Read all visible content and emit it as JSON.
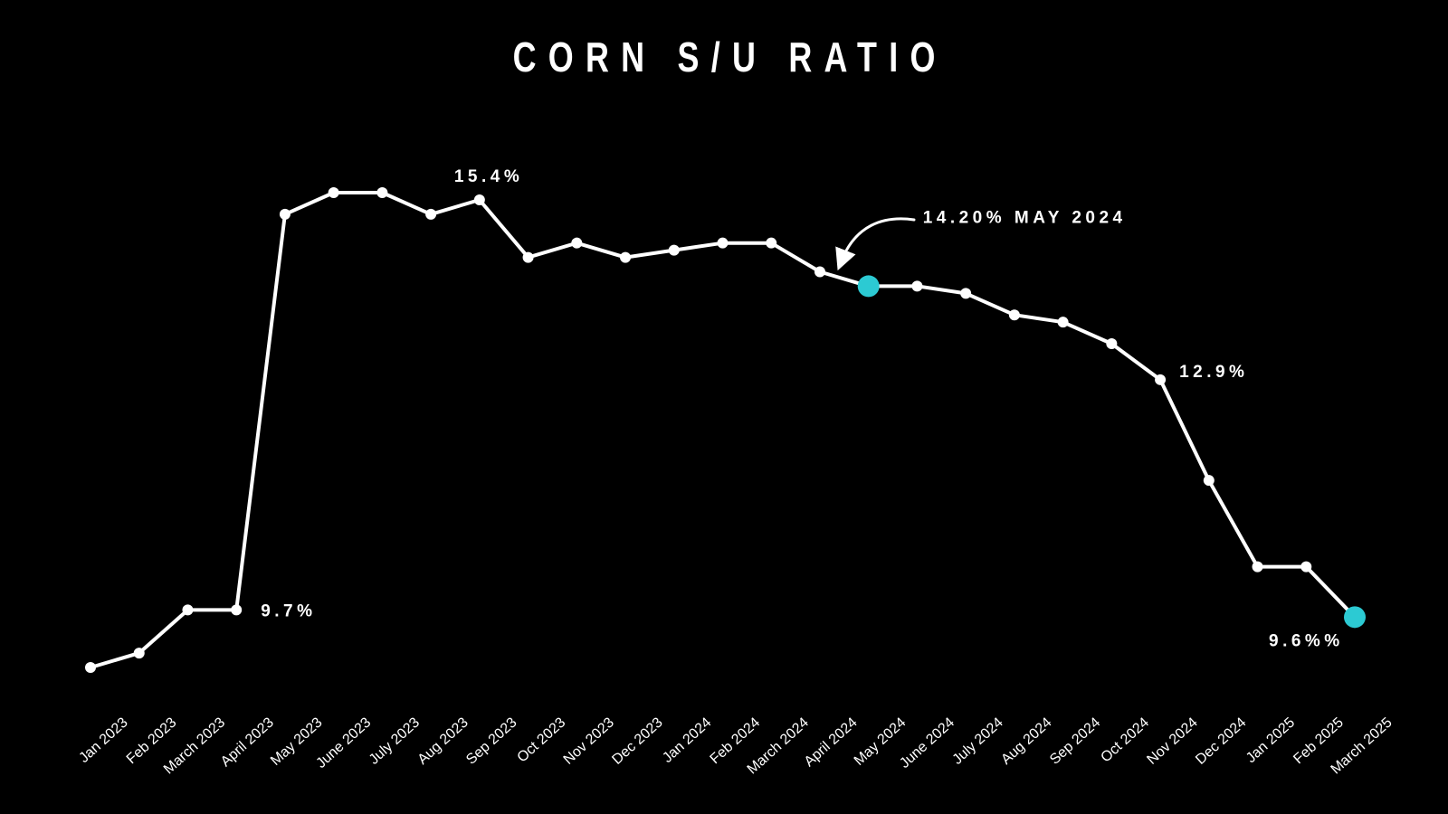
{
  "chart_data": {
    "type": "line",
    "title": "CORN S/U RATIO",
    "xlabel": "",
    "ylabel": "",
    "grid": false,
    "ylim": [
      8.5,
      16.0
    ],
    "categories": [
      "Jan 2023",
      "Feb 2023",
      "March 2023",
      "April 2023",
      "May 2023",
      "June 2023",
      "July 2023",
      "Aug 2023",
      "Sep 2023",
      "Oct 2023",
      "Nov 2023",
      "Dec 2023",
      "Jan 2024",
      "Feb 2024",
      "March 2024",
      "April 2024",
      "May 2024",
      "June 2024",
      "July 2024",
      "Aug 2024",
      "Sep 2024",
      "Oct 2024",
      "Nov 2024",
      "Dec 2024",
      "Jan 2025",
      "Feb 2025",
      "March 2025"
    ],
    "series": [
      {
        "values": [
          8.9,
          9.1,
          9.7,
          9.7,
          15.2,
          15.5,
          15.5,
          15.2,
          15.4,
          14.6,
          14.8,
          14.6,
          14.7,
          14.8,
          14.8,
          14.4,
          14.2,
          14.2,
          14.1,
          13.8,
          13.7,
          13.4,
          12.9,
          11.5,
          10.3,
          10.3,
          9.6
        ],
        "color": "#ffffff"
      }
    ],
    "highlight_color": "#2ccad3",
    "highlight_indices": [
      16,
      26
    ],
    "annotations": [
      {
        "text": "9.7%",
        "index": 3
      },
      {
        "text": "15.4%",
        "index": 8
      },
      {
        "text": "14.20% MAY 2024",
        "index": 16
      },
      {
        "text": "12.9%",
        "index": 22
      },
      {
        "text": "9.6%%",
        "index": 26
      }
    ]
  }
}
